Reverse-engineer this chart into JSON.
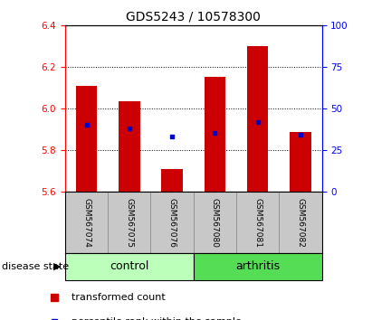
{
  "title": "GDS5243 / 10578300",
  "samples": [
    "GSM567074",
    "GSM567075",
    "GSM567076",
    "GSM567080",
    "GSM567081",
    "GSM567082"
  ],
  "groups": [
    "control",
    "control",
    "control",
    "arthritis",
    "arthritis",
    "arthritis"
  ],
  "bar_tops": [
    6.11,
    6.035,
    5.71,
    6.155,
    6.3,
    5.89
  ],
  "bar_bottom": 5.6,
  "percentile_values": [
    5.925,
    5.905,
    5.865,
    5.885,
    5.935,
    5.875
  ],
  "ylim": [
    5.6,
    6.4
  ],
  "y_ticks_left": [
    5.6,
    5.8,
    6.0,
    6.2,
    6.4
  ],
  "y_ticks_right": [
    0,
    25,
    50,
    75,
    100
  ],
  "bar_color": "#cc0000",
  "dot_color": "#0000cc",
  "control_color": "#bbffbb",
  "arthritis_color": "#55dd55",
  "label_bg_color": "#c8c8c8",
  "tick_fontsize": 7.5,
  "title_fontsize": 10,
  "sample_fontsize": 6.5,
  "group_fontsize": 9,
  "legend_fontsize": 8,
  "disease_state_fontsize": 8
}
